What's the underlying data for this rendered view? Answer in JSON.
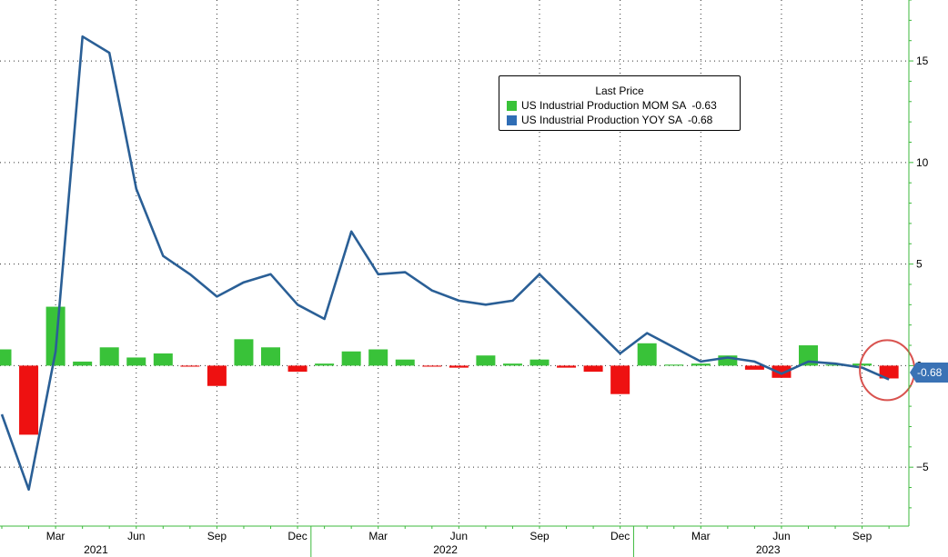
{
  "chart_data": {
    "type": "bar",
    "months": [
      "2021-01",
      "2021-02",
      "2021-03",
      "2021-04",
      "2021-05",
      "2021-06",
      "2021-07",
      "2021-08",
      "2021-09",
      "2021-10",
      "2021-11",
      "2021-12",
      "2022-01",
      "2022-02",
      "2022-03",
      "2022-04",
      "2022-05",
      "2022-06",
      "2022-07",
      "2022-08",
      "2022-09",
      "2022-10",
      "2022-11",
      "2022-12",
      "2023-01",
      "2023-02",
      "2023-03",
      "2023-04",
      "2023-05",
      "2023-06",
      "2023-07",
      "2023-08",
      "2023-09",
      "2023-10"
    ],
    "series": [
      {
        "name": "US Industrial Production MOM SA",
        "kind": "bar",
        "last_value": "-0.63",
        "values": [
          0.8,
          -3.4,
          2.9,
          0.2,
          0.9,
          0.4,
          0.6,
          -0.05,
          -1.0,
          1.3,
          0.9,
          -0.3,
          0.1,
          0.7,
          0.8,
          0.3,
          -0.05,
          -0.1,
          0.5,
          0.1,
          0.3,
          -0.1,
          -0.3,
          -1.4,
          1.1,
          0.05,
          0.1,
          0.5,
          -0.2,
          -0.6,
          1.0,
          0.05,
          0.1,
          -0.63
        ]
      },
      {
        "name": "US Industrial Production YOY SA",
        "kind": "line",
        "last_value": "-0.68",
        "values": [
          -2.4,
          -6.1,
          0.7,
          16.2,
          15.4,
          8.7,
          5.4,
          4.5,
          3.4,
          4.1,
          4.5,
          3.0,
          2.3,
          6.6,
          4.5,
          4.6,
          3.7,
          3.2,
          3.0,
          3.2,
          4.5,
          3.2,
          1.9,
          0.6,
          1.6,
          0.9,
          0.2,
          0.4,
          0.2,
          -0.4,
          0.2,
          0.1,
          -0.1,
          -0.68
        ]
      }
    ],
    "legend_title": "Last Price",
    "legend_position": "top-center",
    "y_ticks": [
      15,
      10,
      5,
      0,
      -5
    ],
    "ylim": [
      -7.9,
      18
    ],
    "month_ticks": [
      {
        "label": "Mar",
        "month": 2
      },
      {
        "label": "Jun",
        "month": 5
      },
      {
        "label": "Sep",
        "month": 8
      },
      {
        "label": "Dec",
        "month": 11
      },
      {
        "label": "Mar",
        "month": 14
      },
      {
        "label": "Jun",
        "month": 17
      },
      {
        "label": "Sep",
        "month": 20
      },
      {
        "label": "Dec",
        "month": 23
      },
      {
        "label": "Mar",
        "month": 26
      },
      {
        "label": "Jun",
        "month": 29
      },
      {
        "label": "Sep",
        "month": 32
      }
    ],
    "year_labels": [
      {
        "label": "2021",
        "month": 3.5
      },
      {
        "label": "2022",
        "month": 16.5
      },
      {
        "label": "2023",
        "month": 28.5
      }
    ],
    "year_dividers": [
      11.5,
      23.5
    ],
    "last_value_label": "-0.68",
    "highlight_month": 33,
    "grid": true,
    "colors": {
      "up_bar": "#39c239",
      "down_bar": "#ee1111",
      "line": "#2a5f96",
      "axis": "#3cba3c",
      "grid": "#333333",
      "legend_mom": "#39c239",
      "legend_yoy": "#2f6db5",
      "badge": "#3a72b5",
      "highlight_ring": "#d9534f"
    }
  }
}
